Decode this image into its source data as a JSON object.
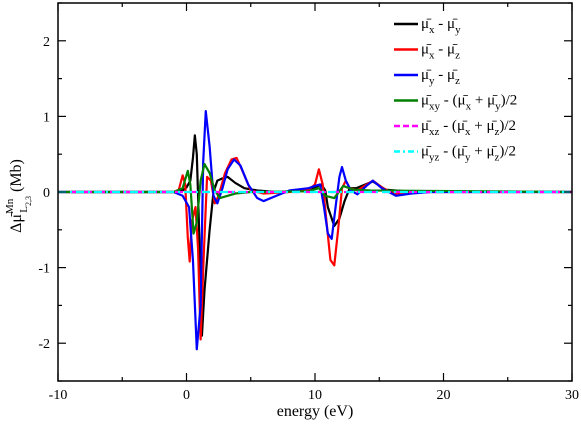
{
  "chart_data": {
    "type": "line",
    "xlabel": "energy (eV)",
    "ylabel": {
      "main": "Δμ̄",
      "sup": "Mn",
      "sub_base": "L",
      "sub_sub": "2,3",
      "unit": " (Mb)"
    },
    "xlim": [
      -10,
      30
    ],
    "ylim": [
      -2.5,
      2.5
    ],
    "xticks": [
      -10,
      0,
      10,
      20,
      30
    ],
    "yticks": [
      -2,
      -1,
      0,
      1,
      2
    ],
    "xtick_labels": [
      "-10",
      "0",
      "10",
      "20",
      "30"
    ],
    "ytick_labels": [
      "-2",
      "-1",
      "0",
      "1",
      "2"
    ],
    "grid": false,
    "legend_position": "top-right",
    "series": [
      {
        "id": "xy",
        "color": "#000000",
        "dash": "solid",
        "legend": {
          "a": "μ̄",
          "as": "x",
          "op": " - ",
          "b": "μ̄",
          "bs": "y"
        },
        "points": [
          [
            -10,
            0
          ],
          [
            -1,
            0
          ],
          [
            -0.3,
            0.02
          ],
          [
            0,
            0.06
          ],
          [
            0.3,
            0.15
          ],
          [
            0.5,
            0.45
          ],
          [
            0.65,
            0.75
          ],
          [
            0.8,
            0.5
          ],
          [
            1,
            -0.6
          ],
          [
            1.2,
            -1.9
          ],
          [
            1.4,
            -1.3
          ],
          [
            1.6,
            -0.9
          ],
          [
            1.8,
            -0.5
          ],
          [
            2.1,
            0
          ],
          [
            2.4,
            0.15
          ],
          [
            2.8,
            0.18
          ],
          [
            3.2,
            0.2
          ],
          [
            3.8,
            0.12
          ],
          [
            4.5,
            0.05
          ],
          [
            5.5,
            0.02
          ],
          [
            7,
            0
          ],
          [
            9.5,
            0.02
          ],
          [
            10.1,
            0.07
          ],
          [
            10.5,
            0.1
          ],
          [
            10.8,
            0.02
          ],
          [
            11,
            -0.2
          ],
          [
            11.5,
            -0.45
          ],
          [
            11.9,
            -0.35
          ],
          [
            12.3,
            -0.12
          ],
          [
            12.7,
            0.05
          ],
          [
            13.2,
            0.05
          ],
          [
            14.5,
            0.14
          ],
          [
            15.5,
            0.03
          ],
          [
            17,
            0.01
          ],
          [
            30,
            0
          ]
        ]
      },
      {
        "id": "xz",
        "color": "#ff0000",
        "dash": "solid",
        "legend": {
          "a": "μ̄",
          "as": "x",
          "op": " - ",
          "b": "μ̄",
          "bs": "z"
        },
        "points": [
          [
            -10,
            0
          ],
          [
            -1,
            0
          ],
          [
            -0.6,
            0.03
          ],
          [
            -0.3,
            0.22
          ],
          [
            -0.1,
            0.1
          ],
          [
            0.1,
            -0.6
          ],
          [
            0.25,
            -0.92
          ],
          [
            0.4,
            -0.4
          ],
          [
            0.7,
            -0.2
          ],
          [
            0.9,
            -0.75
          ],
          [
            1.1,
            -1.95
          ],
          [
            1.35,
            -0.8
          ],
          [
            1.6,
            0.2
          ],
          [
            1.9,
            0.15
          ],
          [
            2.2,
            -0.15
          ],
          [
            2.5,
            -0.05
          ],
          [
            3,
            0.25
          ],
          [
            3.5,
            0.43
          ],
          [
            3.9,
            0.45
          ],
          [
            4.3,
            0.3
          ],
          [
            5,
            0.02
          ],
          [
            6,
            -0.02
          ],
          [
            8,
            0
          ],
          [
            9.5,
            0.03
          ],
          [
            10,
            0.1
          ],
          [
            10.3,
            0.3
          ],
          [
            10.6,
            0.1
          ],
          [
            10.9,
            -0.4
          ],
          [
            11.2,
            -0.9
          ],
          [
            11.5,
            -0.97
          ],
          [
            11.8,
            -0.5
          ],
          [
            12.1,
            0.05
          ],
          [
            12.4,
            0.15
          ],
          [
            12.7,
            0.05
          ],
          [
            13.3,
            0.02
          ],
          [
            14.5,
            0.15
          ],
          [
            15.3,
            0.05
          ],
          [
            16.3,
            -0.03
          ],
          [
            18,
            0
          ],
          [
            30,
            0
          ]
        ]
      },
      {
        "id": "yz",
        "color": "#0000ff",
        "dash": "solid",
        "legend": {
          "a": "μ̄",
          "as": "y",
          "op": " - ",
          "b": "μ̄",
          "bs": "z"
        },
        "points": [
          [
            -10,
            0
          ],
          [
            -1,
            0
          ],
          [
            -0.3,
            -0.05
          ],
          [
            0.2,
            -0.2
          ],
          [
            0.5,
            -0.9
          ],
          [
            0.8,
            -2.08
          ],
          [
            1.1,
            -1.5
          ],
          [
            1.3,
            0.4
          ],
          [
            1.5,
            1.07
          ],
          [
            1.8,
            0.6
          ],
          [
            2.1,
            -0.05
          ],
          [
            2.4,
            -0.15
          ],
          [
            2.8,
            0.05
          ],
          [
            3.2,
            0.3
          ],
          [
            3.7,
            0.43
          ],
          [
            4.2,
            0.35
          ],
          [
            4.8,
            0.1
          ],
          [
            5.5,
            -0.08
          ],
          [
            6,
            -0.12
          ],
          [
            7,
            -0.05
          ],
          [
            8,
            0.02
          ],
          [
            9.5,
            0.05
          ],
          [
            10,
            0.08
          ],
          [
            10.4,
            0.1
          ],
          [
            10.7,
            -0.2
          ],
          [
            11,
            -0.55
          ],
          [
            11.3,
            -0.62
          ],
          [
            11.6,
            -0.2
          ],
          [
            11.9,
            0.2
          ],
          [
            12.1,
            0.33
          ],
          [
            12.4,
            0.15
          ],
          [
            12.8,
            0.02
          ],
          [
            13.3,
            -0.03
          ],
          [
            14,
            0.08
          ],
          [
            14.5,
            0.15
          ],
          [
            15.2,
            0.05
          ],
          [
            16.3,
            -0.05
          ],
          [
            17.5,
            -0.02
          ],
          [
            19,
            0
          ],
          [
            30,
            0
          ]
        ]
      },
      {
        "id": "xy_avg",
        "color": "#008000",
        "dash": "solid",
        "legend": {
          "a": "μ̄",
          "as": "xy",
          "op": " - (",
          "b": "μ̄",
          "bs": "x",
          "op2": " + ",
          "c": "μ̄",
          "cs": "y",
          "tail": ")/2"
        },
        "points": [
          [
            -10,
            0
          ],
          [
            -1,
            0
          ],
          [
            -0.3,
            0.05
          ],
          [
            0.1,
            0.28
          ],
          [
            0.3,
            0.1
          ],
          [
            0.55,
            -0.55
          ],
          [
            0.8,
            -0.4
          ],
          [
            1.1,
            0.15
          ],
          [
            1.4,
            0.37
          ],
          [
            1.8,
            0.25
          ],
          [
            2.2,
            0.02
          ],
          [
            2.6,
            -0.08
          ],
          [
            3.2,
            -0.05
          ],
          [
            3.8,
            -0.02
          ],
          [
            5,
            0
          ],
          [
            9.5,
            0.01
          ],
          [
            10.3,
            0.05
          ],
          [
            10.8,
            -0.05
          ],
          [
            11.5,
            -0.08
          ],
          [
            12.2,
            0.08
          ],
          [
            13,
            0.03
          ],
          [
            14.3,
            0.02
          ],
          [
            30,
            0
          ]
        ]
      },
      {
        "id": "xz_avg",
        "color": "#ff00ff",
        "dash": "8,5",
        "legend": {
          "a": "μ̄",
          "as": "xz",
          "op": " - (",
          "b": "μ̄",
          "bs": "x",
          "op2": " + ",
          "c": "μ̄",
          "cs": "z",
          "tail": ")/2"
        },
        "points": [
          [
            -10,
            0
          ],
          [
            30,
            0
          ]
        ]
      },
      {
        "id": "yz_avg",
        "color": "#00ffff",
        "dash": "8,4,2,4",
        "legend": {
          "a": "μ̄",
          "as": "yz",
          "op": " - (",
          "b": "μ̄",
          "bs": "y",
          "op2": " + ",
          "c": "μ̄",
          "cs": "z",
          "tail": ")/2"
        },
        "points": [
          [
            -10,
            0
          ],
          [
            30,
            0
          ]
        ]
      }
    ]
  }
}
